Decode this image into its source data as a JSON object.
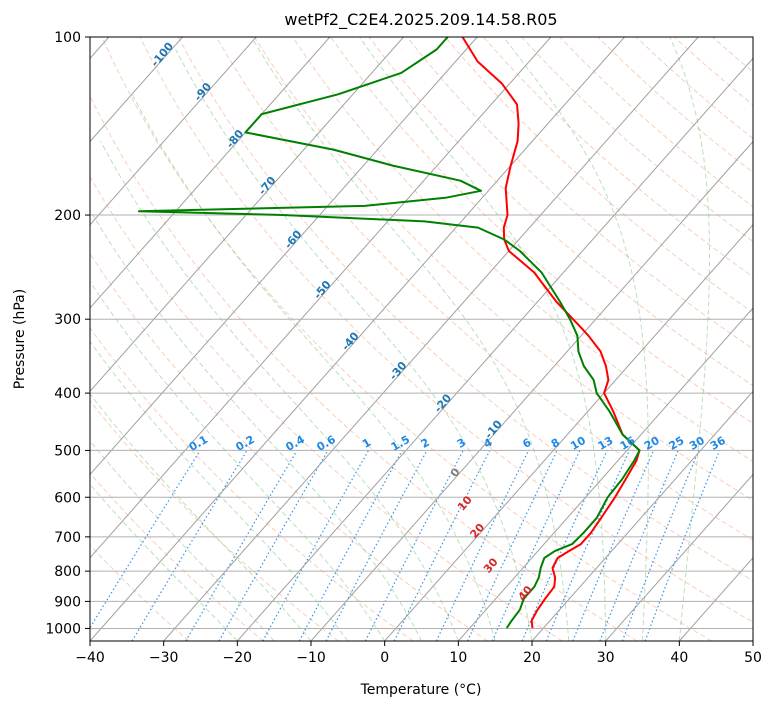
{
  "chart_data": {
    "type": "line",
    "title": "wetPf2_C2E4.2025.209.14.58.R05",
    "xlabel": "Temperature (°C)",
    "ylabel": "Pressure (hPa)",
    "xlim": [
      -40,
      50
    ],
    "ylim": [
      1050,
      100
    ],
    "y_scale": "log",
    "skew": "skew-T",
    "grid": true,
    "x_ticks": [
      -40,
      -30,
      -20,
      -10,
      0,
      10,
      20,
      30,
      40,
      50
    ],
    "y_ticks": [
      100,
      200,
      300,
      400,
      500,
      600,
      700,
      800,
      900,
      1000
    ],
    "series": [
      {
        "color": "#ff0000",
        "points": [
          [
            998,
            18.5
          ],
          [
            970,
            17.5
          ],
          [
            930,
            17.0
          ],
          [
            890,
            16.7
          ],
          [
            850,
            16.5
          ],
          [
            820,
            15.5
          ],
          [
            790,
            14.0
          ],
          [
            760,
            13.5
          ],
          [
            740,
            14.2
          ],
          [
            720,
            15.0
          ],
          [
            690,
            15.0
          ],
          [
            650,
            14.6
          ],
          [
            600,
            14.0
          ],
          [
            560,
            13.3
          ],
          [
            520,
            12.5
          ],
          [
            500,
            11.7
          ],
          [
            470,
            7.5
          ],
          [
            430,
            3.5
          ],
          [
            400,
            0.0
          ],
          [
            380,
            -1.0
          ],
          [
            360,
            -3.0
          ],
          [
            340,
            -5.5
          ],
          [
            320,
            -9.0
          ],
          [
            310,
            -11.0
          ],
          [
            280,
            -17.5
          ],
          [
            250,
            -24.0
          ],
          [
            230,
            -30.0
          ],
          [
            220,
            -32.0
          ],
          [
            210,
            -33.5
          ],
          [
            200,
            -34.5
          ],
          [
            180,
            -38.0
          ],
          [
            165,
            -40.0
          ],
          [
            150,
            -42.0
          ],
          [
            140,
            -44.0
          ],
          [
            130,
            -46.5
          ],
          [
            120,
            -51.0
          ],
          [
            110,
            -57.0
          ],
          [
            100,
            -62.0
          ]
        ]
      },
      {
        "color": "#008000",
        "points": [
          [
            998,
            15.0
          ],
          [
            970,
            14.8
          ],
          [
            930,
            14.6
          ],
          [
            890,
            13.8
          ],
          [
            850,
            13.8
          ],
          [
            820,
            13.3
          ],
          [
            790,
            12.4
          ],
          [
            760,
            11.7
          ],
          [
            740,
            12.3
          ],
          [
            720,
            13.8
          ],
          [
            690,
            14.0
          ],
          [
            650,
            14.0
          ],
          [
            600,
            13.0
          ],
          [
            560,
            12.8
          ],
          [
            520,
            12.2
          ],
          [
            500,
            11.7
          ],
          [
            470,
            7.5
          ],
          [
            430,
            3.0
          ],
          [
            400,
            -1.0
          ],
          [
            380,
            -3.0
          ],
          [
            360,
            -6.0
          ],
          [
            340,
            -8.5
          ],
          [
            320,
            -10.5
          ],
          [
            300,
            -13.5
          ],
          [
            280,
            -17.0
          ],
          [
            250,
            -23.0
          ],
          [
            230,
            -28.5
          ],
          [
            220,
            -32.0
          ],
          [
            210,
            -37.0
          ],
          [
            205,
            -45.0
          ],
          [
            200,
            -65.0
          ],
          [
            197,
            -85.0
          ],
          [
            193,
            -55.0
          ],
          [
            187,
            -45.0
          ],
          [
            182,
            -41.0
          ],
          [
            175,
            -45.0
          ],
          [
            165,
            -56.0
          ],
          [
            155,
            -66.0
          ],
          [
            145,
            -80.0
          ],
          [
            135,
            -80.0
          ],
          [
            125,
            -72.0
          ],
          [
            115,
            -66.0
          ],
          [
            105,
            -64.0
          ],
          [
            100,
            -64.0
          ]
        ]
      }
    ],
    "annotations": {
      "mixing_ratio_labels": [
        "0.1",
        "0.2",
        "0.4",
        "0.6",
        "1",
        "1.5",
        "2",
        "3",
        "4",
        "6",
        "8",
        "10",
        "13",
        "16",
        "20",
        "25",
        "30",
        "36"
      ],
      "dry_adiabat_labels": [
        "-100",
        "-90",
        "-80",
        "-70",
        "-60",
        "-50",
        "-40",
        "-30",
        "-20",
        "-10"
      ],
      "moist_adiabat_labels": [
        "0",
        "10",
        "20",
        "30",
        "40"
      ]
    }
  }
}
